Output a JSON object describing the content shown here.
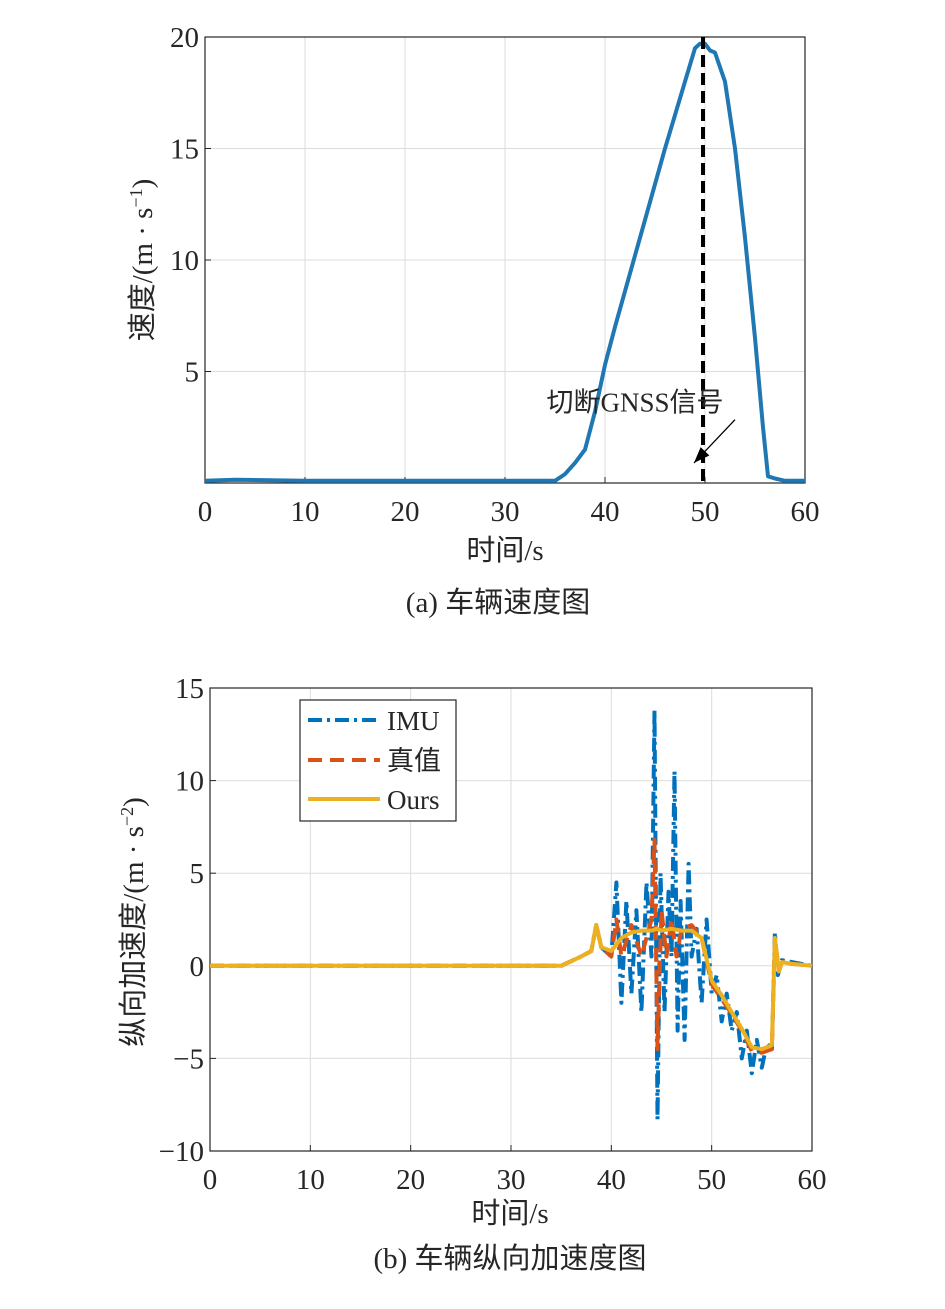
{
  "chart_data": [
    {
      "type": "line",
      "caption": "(a) 车辆速度图",
      "xlabel": "时间/s",
      "ylabel_main": "速度/(m · s",
      "ylabel_sup": "−1",
      "ylabel_tail": ")",
      "xlim": [
        0,
        60
      ],
      "ylim": [
        0,
        20
      ],
      "xticks": [
        0,
        10,
        20,
        30,
        40,
        50,
        60
      ],
      "yticks": [
        5,
        10,
        15,
        20
      ],
      "grid": true,
      "colors": {
        "speed": "#1f77b4",
        "marker": "#000000"
      },
      "series": [
        {
          "x": [
            0,
            3,
            10,
            20,
            30,
            35,
            36,
            37,
            38,
            39,
            40,
            41,
            42,
            43,
            44,
            45,
            46,
            47,
            48,
            49,
            49.5,
            50,
            50.5,
            51,
            52,
            53,
            54,
            55,
            55.8,
            56.3,
            57,
            58,
            60
          ],
          "y": [
            0.1,
            0.15,
            0.1,
            0.1,
            0.1,
            0.1,
            0.4,
            0.9,
            1.5,
            3.2,
            5.3,
            7.0,
            8.6,
            10.2,
            11.8,
            13.4,
            15.0,
            16.5,
            18.0,
            19.5,
            19.7,
            19.7,
            19.4,
            19.3,
            18.0,
            15.0,
            11.0,
            6.5,
            2.5,
            0.3,
            0.2,
            0.1,
            0.1
          ]
        }
      ],
      "vline_x": 49.8,
      "annotation": {
        "text": "切断GNSS信号",
        "x": 43,
        "y": 3.2,
        "arrow_to": [
          48.9,
          0.9
        ]
      }
    },
    {
      "type": "line",
      "caption": "(b) 车辆纵向加速度图",
      "xlabel": "时间/s",
      "ylabel_main": "纵向加速度/(m · s",
      "ylabel_sup": "−2",
      "ylabel_tail": ")",
      "xlim": [
        0,
        60
      ],
      "ylim": [
        -10,
        15
      ],
      "xticks": [
        0,
        10,
        20,
        30,
        40,
        50,
        60
      ],
      "yticks": [
        -10,
        -5,
        0,
        5,
        10,
        15
      ],
      "grid": true,
      "legend": "top-left",
      "series": [
        {
          "name": "IMU",
          "color": "#0072bd",
          "style": "dashdot",
          "x": [
            0,
            10,
            20,
            30,
            35,
            37,
            38,
            38.5,
            39,
            40,
            40.5,
            41,
            41.5,
            42,
            42.5,
            43,
            43.5,
            44,
            44.3,
            44.6,
            44.9,
            45.3,
            45.7,
            46,
            46.3,
            46.6,
            46.9,
            47.3,
            47.7,
            48,
            48.5,
            49,
            49.5,
            50,
            50.5,
            51,
            51.5,
            52,
            52.5,
            53,
            53.5,
            54,
            54.5,
            55,
            55.5,
            56,
            56.3,
            56.6,
            57,
            58,
            60
          ],
          "y": [
            0,
            0,
            0,
            0,
            0,
            0.5,
            0.8,
            2.2,
            1.0,
            0.5,
            4.5,
            -2.0,
            3.5,
            -1.5,
            3.0,
            -2.5,
            4.5,
            0.5,
            13.8,
            -8.3,
            5.0,
            -2.5,
            4.0,
            0.5,
            10.5,
            -3.5,
            3.5,
            -4.0,
            5.5,
            0.5,
            2.0,
            -2.0,
            2.5,
            -1.5,
            -0.5,
            -3.0,
            -1.5,
            -3.5,
            -2.5,
            -5.0,
            -3.5,
            -5.8,
            -4.0,
            -5.5,
            -4.2,
            -4.5,
            1.8,
            -0.5,
            0.3,
            0.2,
            0
          ]
        },
        {
          "name": "真值",
          "color": "#d95319",
          "style": "dashed",
          "x": [
            0,
            10,
            20,
            30,
            35,
            37,
            38,
            38.5,
            39,
            40,
            40.5,
            41,
            42,
            43,
            44,
            44.3,
            44.6,
            45,
            45.5,
            46,
            46.5,
            47,
            48,
            49,
            50,
            51,
            52,
            53,
            54,
            55,
            56,
            56.3,
            56.7,
            57,
            58,
            60
          ],
          "y": [
            0,
            0,
            0,
            0,
            0,
            0.5,
            0.8,
            2.2,
            1.0,
            0.5,
            2.5,
            0.5,
            2.2,
            0.5,
            2.5,
            6.8,
            -4.5,
            3.0,
            0.5,
            2.5,
            0.5,
            2.0,
            2.2,
            1.5,
            -1.0,
            -1.8,
            -2.6,
            -3.5,
            -4.6,
            -4.7,
            -4.5,
            1.5,
            -0.3,
            0.2,
            0.1,
            0
          ]
        },
        {
          "name": "Ours",
          "color": "#edb120",
          "style": "solid",
          "x": [
            0,
            10,
            20,
            30,
            35,
            37,
            38,
            38.5,
            39,
            40,
            41,
            42,
            43,
            44,
            44.5,
            45,
            46,
            47,
            48,
            49,
            50,
            51,
            52,
            53,
            54,
            55,
            56,
            56.3,
            56.7,
            57,
            58,
            60
          ],
          "y": [
            0,
            0,
            0,
            0,
            0,
            0.5,
            0.8,
            2.2,
            1.0,
            0.8,
            1.5,
            1.8,
            1.9,
            1.9,
            2.0,
            1.9,
            2.0,
            1.9,
            1.9,
            1.5,
            -0.8,
            -1.6,
            -2.5,
            -3.4,
            -4.4,
            -4.5,
            -4.3,
            1.5,
            -0.3,
            0.2,
            0.1,
            0
          ]
        }
      ]
    }
  ]
}
